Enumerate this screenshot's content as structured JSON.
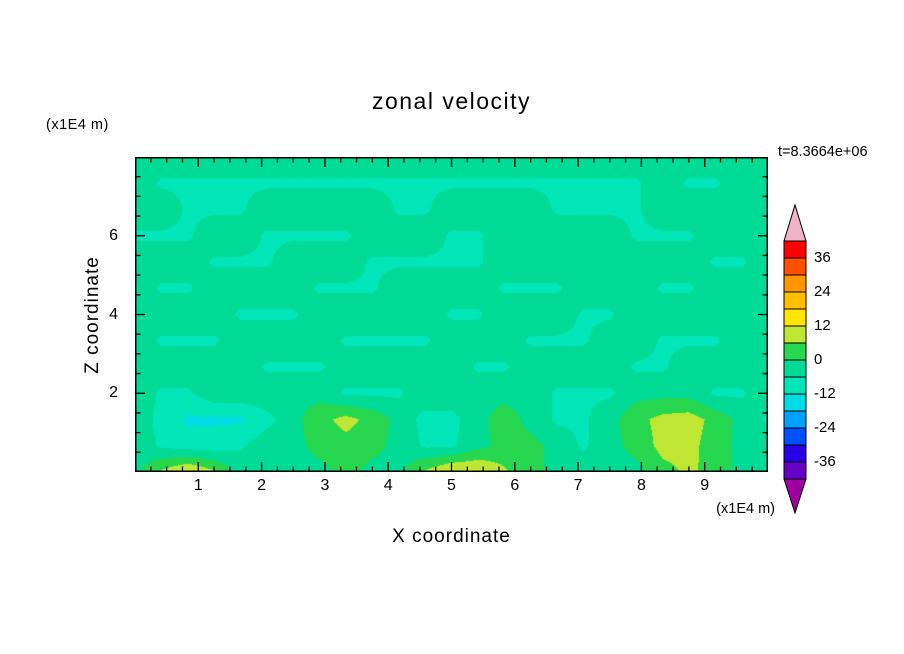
{
  "page": {
    "background": "#FFFFFF"
  },
  "chart_data": {
    "type": "heatmap",
    "subtype": "filled-contour",
    "title": "zonal velocity",
    "annotation": "t=8.3664e+06",
    "x_axis": {
      "label": "X coordinate",
      "unit": "(x1E4 m)",
      "range": [
        0,
        10
      ],
      "major_ticks": [
        1,
        2,
        3,
        4,
        5,
        6,
        7,
        8,
        9
      ],
      "major_step": 1,
      "minor_step": 0.25
    },
    "y_axis": {
      "label": "Z coordinate",
      "unit": "(x1E4 m)",
      "range": [
        0,
        8
      ],
      "major_ticks": [
        2,
        4,
        6
      ],
      "major_step": 2,
      "minor_step": 0.5
    },
    "colorbar": {
      "levels": [
        -42,
        -36,
        -30,
        -24,
        -18,
        -12,
        -6,
        0,
        6,
        12,
        18,
        24,
        30,
        36,
        42
      ],
      "color_order": "low_to_high",
      "colors": [
        "#6400C8",
        "#2800E6",
        "#0050FF",
        "#00A0FF",
        "#00DCE6",
        "#00E6B9",
        "#00DC96",
        "#28D750",
        "#BEE632",
        "#FFE600",
        "#FFBE00",
        "#FF9600",
        "#FF5000",
        "#FF0000"
      ],
      "under_color": "#A000A0",
      "over_color": "#F0B4C8",
      "labels": [
        36,
        24,
        12,
        0,
        -12,
        -24,
        -36
      ],
      "label_step": 12
    },
    "grid": {
      "x_range": [
        0,
        10
      ],
      "z_range": [
        0,
        8
      ],
      "nx": 25,
      "nz": 13,
      "row_order": "top_to_bottom",
      "values": [
        [
          -2,
          -2,
          -2,
          -2,
          -2,
          -2,
          -2,
          -2,
          -2,
          -2,
          -2,
          -2,
          -2,
          -2,
          -2,
          -2,
          -2,
          -2,
          -2,
          -2,
          -2,
          -2,
          -2,
          -2,
          -2
        ],
        [
          -2,
          -7,
          -7,
          -7,
          -7,
          -7,
          -7,
          -7,
          -7,
          -7,
          -7,
          -7,
          -7,
          -7,
          -7,
          -7,
          -7,
          -7,
          -7,
          -7,
          -2,
          -7,
          -7,
          -2,
          -2
        ],
        [
          -2,
          -2,
          -7,
          -7,
          -7,
          -2,
          -2,
          -2,
          -2,
          -2,
          -7,
          -7,
          -2,
          -2,
          -2,
          -2,
          -7,
          -7,
          -7,
          -7,
          -2,
          -2,
          -2,
          -2,
          -2
        ],
        [
          -7,
          -7,
          -7,
          -2,
          -2,
          -7,
          -7,
          -7,
          -7,
          -2,
          -2,
          -2,
          -7,
          -7,
          -2,
          -2,
          -2,
          -2,
          -2,
          -7,
          -7,
          -7,
          -2,
          -2,
          -2
        ],
        [
          -2,
          -2,
          -2,
          -7,
          -7,
          -7,
          -2,
          -2,
          -2,
          -7,
          -7,
          -7,
          -7,
          -7,
          -2,
          -2,
          -2,
          -2,
          -2,
          -2,
          -2,
          -2,
          -7,
          -7,
          -2
        ],
        [
          -2,
          -7,
          -7,
          -2,
          -2,
          -2,
          -2,
          -7,
          -7,
          -7,
          -2,
          -2,
          -2,
          -2,
          -7,
          -7,
          -7,
          -2,
          -2,
          -2,
          -7,
          -7,
          -2,
          -2,
          -2
        ],
        [
          -2,
          -2,
          -2,
          -2,
          -7,
          -7,
          -7,
          -2,
          -2,
          -2,
          -2,
          -2,
          -7,
          -7,
          -2,
          -2,
          -2,
          -7,
          -7,
          -2,
          -2,
          -2,
          -2,
          -2,
          -2
        ],
        [
          -2,
          -7,
          -7,
          -7,
          -2,
          -2,
          -2,
          -2,
          -7,
          -7,
          -7,
          -7,
          -2,
          -2,
          -2,
          -7,
          -7,
          -7,
          -2,
          -2,
          -7,
          -7,
          -7,
          -2,
          -2
        ],
        [
          -2,
          -2,
          -2,
          -2,
          -2,
          -7,
          -7,
          -7,
          -2,
          -2,
          -2,
          -2,
          -2,
          -7,
          -7,
          -2,
          -2,
          -2,
          -2,
          -7,
          -7,
          -2,
          -2,
          -2,
          -2
        ],
        [
          -2,
          -7,
          -7,
          -2,
          -2,
          -2,
          -2,
          -2,
          -7,
          -7,
          -7,
          -2,
          -2,
          -2,
          -2,
          -2,
          -7,
          -7,
          -7,
          -2,
          -2,
          -2,
          -7,
          -7,
          -2
        ],
        [
          -2,
          -8,
          -13,
          -13,
          -13,
          -8,
          -2,
          4,
          8,
          4,
          -2,
          -8,
          -8,
          -2,
          3,
          -2,
          -7,
          -7,
          -2,
          4,
          8,
          9,
          4,
          -2,
          -7
        ],
        [
          -2,
          -7,
          -9,
          -9,
          -7,
          -2,
          -2,
          2,
          4,
          2,
          -2,
          -7,
          -7,
          -2,
          2,
          2,
          -2,
          -7,
          -2,
          2,
          8,
          8,
          3,
          -2,
          -2
        ],
        [
          -2,
          7,
          13,
          7,
          -2,
          -2,
          -2,
          -2,
          2,
          -2,
          -2,
          7,
          13,
          13,
          7,
          2,
          -2,
          -2,
          -2,
          -2,
          4,
          7,
          4,
          -2,
          -2
        ]
      ]
    }
  }
}
